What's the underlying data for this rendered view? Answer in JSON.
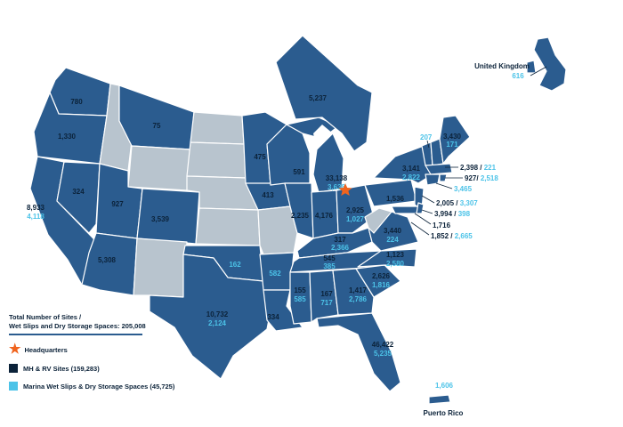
{
  "legend": {
    "total_line1": "Total Number of Sites /",
    "total_line2": "Wet Slips and Dry Storage Spaces: 205,008",
    "headquarters": "Headquarters",
    "mh_rv": "MH & RV Sites  (159,283)",
    "marina": "Marina Wet Slips & Dry Storage Spaces (45,725)"
  },
  "colors": {
    "state_active": "#2b5c8f",
    "state_inactive": "#b8c4ce",
    "mh_text": "#0b2239",
    "marina_text": "#4cc3e8",
    "headquarters_star": "#f0641e"
  },
  "states": {
    "WA": {
      "mh": "780"
    },
    "OR": {
      "mh": "1,330"
    },
    "CA": {
      "mh": "8,933",
      "marina": "4,118"
    },
    "NV": {
      "mh": "324"
    },
    "UT": {
      "mh": "927"
    },
    "AZ": {
      "mh": "5,308"
    },
    "MT": {
      "mh": "75"
    },
    "CO": {
      "mh": "3,539"
    },
    "TX": {
      "mh": "10,732",
      "marina": "2,124"
    },
    "OK": {
      "marina": "162"
    },
    "AR": {
      "marina": "582"
    },
    "LA": {
      "mh": "334"
    },
    "MN": {
      "mh": "475"
    },
    "IA": {
      "mh": "413"
    },
    "WI": {
      "mh": "591"
    },
    "IL": {
      "mh": "2,235"
    },
    "MI": {
      "mh": "33,138",
      "marina": "3,638"
    },
    "IN": {
      "mh": "4,176"
    },
    "OH": {
      "mh": "2,925",
      "marina": "1,027"
    },
    "KY": {
      "mh": "317",
      "marina": "2,366"
    },
    "TN": {
      "mh": "545",
      "marina": "385"
    },
    "MS": {
      "mh": "155",
      "marina": "585"
    },
    "AL": {
      "mh": "167",
      "marina": "717"
    },
    "GA": {
      "mh": "1,417",
      "marina": "2,786"
    },
    "SC": {
      "mh": "2,626",
      "marina": "1,816"
    },
    "NC": {
      "mh": "1,123",
      "marina": "2,580"
    },
    "VA": {
      "mh": "3,440",
      "marina": "224"
    },
    "FL": {
      "mh": "46,422",
      "marina": "5,235"
    },
    "PA": {
      "mh": "1,536"
    },
    "NY": {
      "mh": "3,141",
      "marina": "2,822"
    },
    "ME": {
      "mh": "3,430",
      "marina": "171"
    },
    "ND": {
      "mh": "5,237"
    }
  },
  "callouts": {
    "NH": {
      "marina": "207"
    },
    "MA": {
      "mh": "2,398",
      "sep": " / ",
      "marina": "221"
    },
    "RI": {
      "mh": "927",
      "sep": "/ ",
      "marina": "2,518"
    },
    "CT": {
      "marina": "3,465"
    },
    "NJ": {
      "mh": "2,005",
      "sep": " / ",
      "marina": "3,307"
    },
    "DE": {
      "mh": "3,994",
      "sep": " / ",
      "marina": "398"
    },
    "MD": {
      "mh": "1,716"
    },
    "DC": {
      "mh": "1,852",
      "sep": " / ",
      "marina": "2,665"
    }
  },
  "uk": {
    "name": "United Kingdom",
    "marina": "616"
  },
  "puerto_rico": {
    "name": "Puerto Rico",
    "marina": "1,606"
  }
}
